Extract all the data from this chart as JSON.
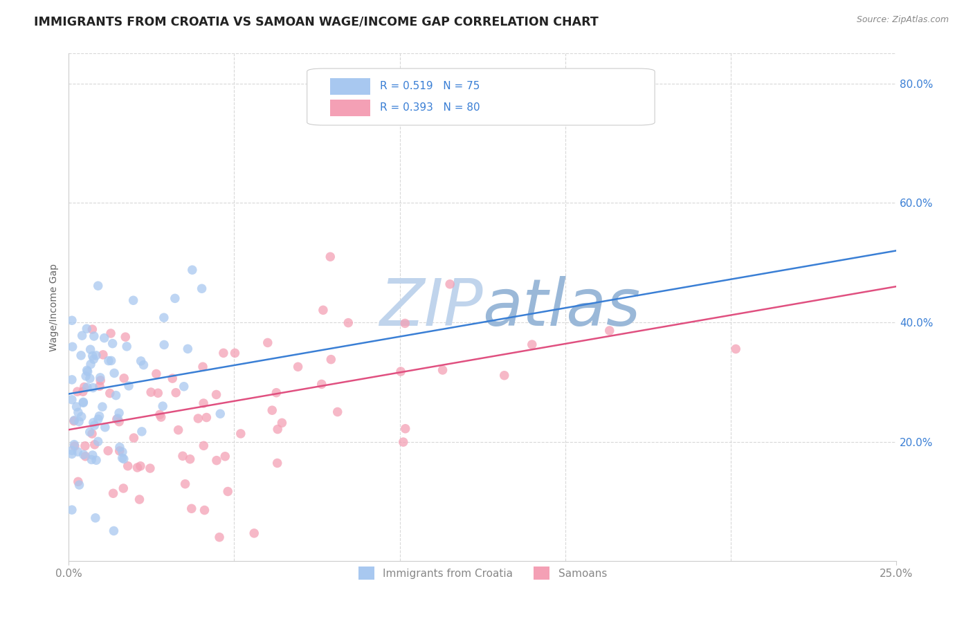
{
  "title": "IMMIGRANTS FROM CROATIA VS SAMOAN WAGE/INCOME GAP CORRELATION CHART",
  "source": "Source: ZipAtlas.com",
  "ylabel": "Wage/Income Gap",
  "x_min": 0.0,
  "x_max": 0.25,
  "y_min": 0.0,
  "y_max": 0.85,
  "y_tick_labels": [
    "20.0%",
    "40.0%",
    "60.0%",
    "80.0%"
  ],
  "y_tick_vals": [
    0.2,
    0.4,
    0.6,
    0.8
  ],
  "r_croatia": 0.519,
  "n_croatia": 75,
  "r_samoan": 0.393,
  "n_samoan": 80,
  "color_croatia": "#a8c8f0",
  "color_samoan": "#f4a0b5",
  "color_croatia_line": "#3a7fd5",
  "color_samoan_line": "#e05080",
  "color_legend_text": "#3a7fd5",
  "watermark_zip_color": "#c8d8ee",
  "watermark_atlas_color": "#9ab8d8",
  "background_color": "#ffffff",
  "grid_color": "#d8d8d8",
  "title_color": "#222222",
  "source_color": "#888888",
  "axis_label_color": "#666666",
  "tick_label_color": "#888888",
  "seed": 7,
  "croatia_line_x0": 0.0,
  "croatia_line_y0": 0.28,
  "croatia_line_x1": 0.25,
  "croatia_line_y1": 0.52,
  "samoan_line_x0": 0.0,
  "samoan_line_y0": 0.22,
  "samoan_line_x1": 0.25,
  "samoan_line_y1": 0.46
}
